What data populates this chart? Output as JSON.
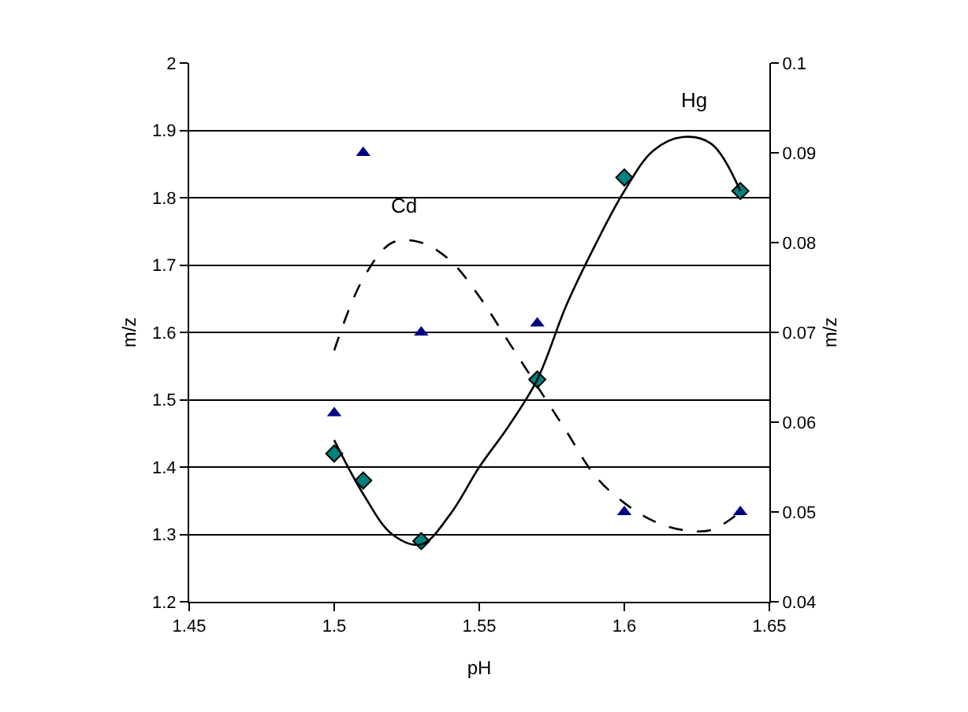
{
  "chart_data": {
    "type": "scatter",
    "xlabel": "pH",
    "ylabel": "m/z",
    "y2label": "m/z",
    "xlim": [
      1.45,
      1.65
    ],
    "xticks": [
      1.45,
      1.5,
      1.55,
      1.6,
      1.65
    ],
    "ylim": [
      1.2,
      2
    ],
    "yticks": [
      1.2,
      1.3,
      1.4,
      1.5,
      1.6,
      1.7,
      1.8,
      1.9,
      2
    ],
    "y2lim": [
      0.04,
      0.1
    ],
    "y2ticks": [
      0.04,
      0.05,
      0.06,
      0.07,
      0.08,
      0.09,
      0.1
    ],
    "grid": "y",
    "series": [
      {
        "color": "#008080",
        "marker": "diamond",
        "x": [
          1.5,
          1.51,
          1.53,
          1.57,
          1.6,
          1.64
        ],
        "values": [
          1.42,
          1.38,
          1.29,
          1.53,
          1.83,
          1.81
        ]
      },
      {
        "axis": "y2",
        "color": "#000080",
        "marker": "triangle",
        "x": [
          1.5,
          1.51,
          1.53,
          1.57,
          1.6,
          1.64
        ],
        "values": [
          0.061,
          0.09,
          0.07,
          0.071,
          0.05,
          0.05
        ]
      },
      {
        "type": "line",
        "name": "Hg",
        "color": "#000000",
        "line_style": "solid",
        "marker": "none",
        "x": [
          1.5,
          1.51,
          1.52,
          1.53,
          1.54,
          1.55,
          1.56,
          1.57,
          1.58,
          1.59,
          1.6,
          1.61,
          1.62,
          1.63,
          1.64
        ],
        "values": [
          1.44,
          1.36,
          1.3,
          1.285,
          1.33,
          1.4,
          1.46,
          1.53,
          1.64,
          1.73,
          1.81,
          1.87,
          1.89,
          1.88,
          1.81
        ]
      },
      {
        "type": "line",
        "name": "Cd",
        "axis": "y2",
        "color": "#000000",
        "line_style": "dashed",
        "marker": "none",
        "x": [
          1.5,
          1.51,
          1.52,
          1.53,
          1.54,
          1.55,
          1.56,
          1.57,
          1.58,
          1.59,
          1.6,
          1.61,
          1.62,
          1.63,
          1.64
        ],
        "values": [
          0.068,
          0.076,
          0.08,
          0.08,
          0.078,
          0.074,
          0.069,
          0.064,
          0.059,
          0.054,
          0.051,
          0.049,
          0.048,
          0.048,
          0.05
        ]
      }
    ]
  }
}
